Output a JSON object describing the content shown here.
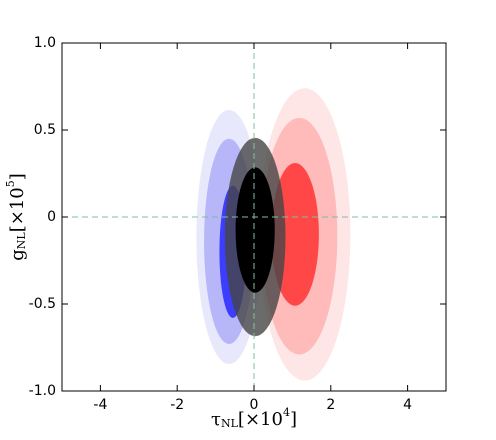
{
  "chart_data": {
    "type": "ellipse",
    "x_label": {
      "symbol": "τ",
      "subscript": "NL",
      "text": "[×10",
      "exponent": "4",
      "close": "]"
    },
    "y_label": {
      "symbol": "g",
      "subscript": "NL",
      "text": "[×10",
      "exponent": "5",
      "close": "]"
    },
    "xlim": [
      -5,
      5
    ],
    "ylim": [
      -1,
      1
    ],
    "xticks": [
      -4,
      -2,
      0,
      2,
      4
    ],
    "yticks": [
      {
        "value": 1,
        "label": "1.0"
      },
      0.5,
      0,
      -0.5,
      {
        "value": -1,
        "label": "-1.0"
      }
    ],
    "reference_lines": {
      "x": 0,
      "y": 0,
      "color": "#7fbf9f"
    },
    "ellipses": [
      {
        "cx": -0.65,
        "cy": -0.115,
        "rx": 0.85,
        "ry": 0.73,
        "color": "rgba(205,205,250,0.45)"
      },
      {
        "cx": 1.32,
        "cy": -0.1,
        "rx": 1.19,
        "ry": 0.84,
        "color": "rgba(255,200,200,0.45)"
      },
      {
        "cx": -0.65,
        "cy": -0.14,
        "rx": 0.65,
        "ry": 0.59,
        "color": "rgba(140,140,245,0.55)"
      },
      {
        "cx": 1.18,
        "cy": -0.11,
        "rx": 0.99,
        "ry": 0.68,
        "color": "rgba(255,150,150,0.55)"
      },
      {
        "cx": -0.55,
        "cy": -0.2,
        "rx": 0.35,
        "ry": 0.38,
        "color": "rgba(40,40,255,0.85)"
      },
      {
        "cx": 1.07,
        "cy": -0.1,
        "rx": 0.62,
        "ry": 0.41,
        "color": "rgba(255,50,50,0.85)"
      },
      {
        "cx": 0.03,
        "cy": -0.115,
        "rx": 0.79,
        "ry": 0.57,
        "color": "rgba(70,70,70,0.8)"
      },
      {
        "cx": 0.03,
        "cy": -0.075,
        "rx": 0.51,
        "ry": 0.36,
        "color": "#000000"
      }
    ]
  }
}
